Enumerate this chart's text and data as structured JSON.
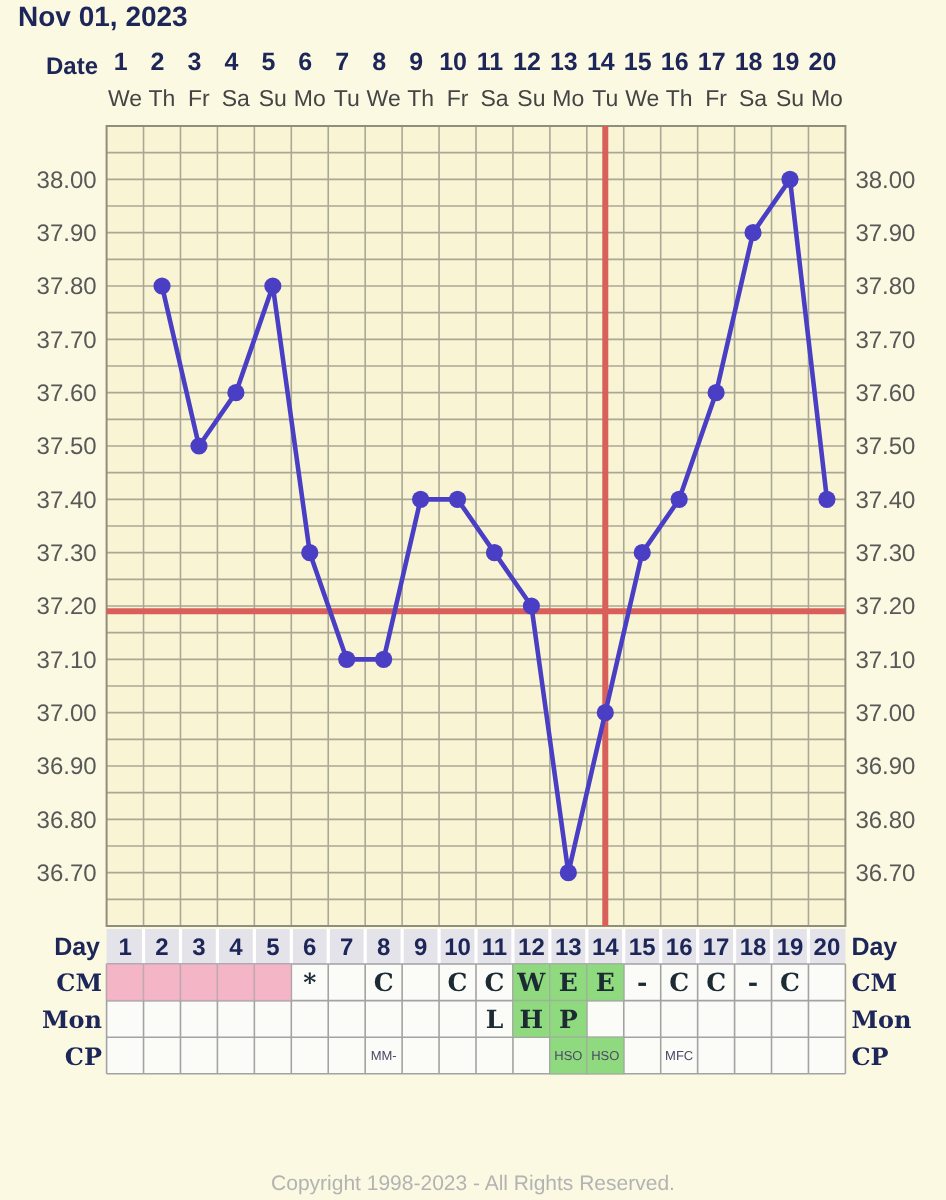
{
  "chart_data": [
    {
      "type": "line",
      "title": "Nov 01, 2023",
      "xlabel": "Date",
      "x2label": "Day",
      "categories": [
        "1\nWe",
        "2\nTh",
        "3\nFr",
        "4\nSa",
        "5\nSu",
        "6\nMo",
        "7\nTu",
        "8\nWe",
        "9\nTh",
        "10\nFr",
        "11\nSa",
        "12\nSu",
        "13\nMo",
        "14\nTu",
        "15\nWe",
        "16\nTh",
        "17\nFr",
        "18\nSa",
        "19\nSu",
        "20\nMo"
      ],
      "values": [
        null,
        37.8,
        37.5,
        37.6,
        37.8,
        37.3,
        37.1,
        37.1,
        37.4,
        37.4,
        37.3,
        37.2,
        36.7,
        37.0,
        37.3,
        37.4,
        37.6,
        37.9,
        38.0,
        37.4
      ],
      "color": "#4a3fc4",
      "marker": "circle",
      "line_style": "solid",
      "grid": true,
      "x2lim": [
        0.5,
        20.5
      ],
      "x2ticks": [
        1,
        2,
        3,
        4,
        5,
        6,
        7,
        8,
        9,
        10,
        11,
        12,
        13,
        14,
        15,
        16,
        17,
        18,
        19,
        20
      ],
      "ylim": [
        36.6,
        38.1
      ],
      "yticks": [
        {
          "value": 36.65,
          "label": null
        },
        {
          "value": 36.7,
          "label": "36.70"
        },
        {
          "value": 36.75,
          "label": null
        },
        {
          "value": 36.8,
          "label": "36.80"
        },
        {
          "value": 36.85,
          "label": null
        },
        {
          "value": 36.9,
          "label": "36.90"
        },
        {
          "value": 36.95,
          "label": null
        },
        {
          "value": 37.0,
          "label": "37.00"
        },
        {
          "value": 37.05,
          "label": null
        },
        {
          "value": 37.1,
          "label": "37.10"
        },
        {
          "value": 37.15,
          "label": null
        },
        {
          "value": 37.2,
          "label": "37.20"
        },
        {
          "value": 37.25,
          "label": null
        },
        {
          "value": 37.3,
          "label": "37.30"
        },
        {
          "value": 37.35,
          "label": null
        },
        {
          "value": 37.4,
          "label": "37.40"
        },
        {
          "value": 37.45,
          "label": null
        },
        {
          "value": 37.5,
          "label": "37.50"
        },
        {
          "value": 37.55,
          "label": null
        },
        {
          "value": 37.6,
          "label": "37.60"
        },
        {
          "value": 37.65,
          "label": null
        },
        {
          "value": 37.7,
          "label": "37.70"
        },
        {
          "value": 37.75,
          "label": null
        },
        {
          "value": 37.8,
          "label": "37.80"
        },
        {
          "value": 37.85,
          "label": null
        },
        {
          "value": 37.9,
          "label": "37.90"
        },
        {
          "value": 37.95,
          "label": null
        },
        {
          "value": 38.0,
          "label": "38.00"
        },
        {
          "value": 38.05,
          "label": null
        }
      ],
      "y2lim": [
        36.6,
        38.1
      ],
      "y2ticks": [
        {
          "value": 36.7,
          "label": "36.70"
        },
        {
          "value": 36.8,
          "label": "36.80"
        },
        {
          "value": 36.9,
          "label": "36.90"
        },
        {
          "value": 37.0,
          "label": "37.00"
        },
        {
          "value": 37.1,
          "label": "37.10"
        },
        {
          "value": 37.2,
          "label": "37.20"
        },
        {
          "value": 37.3,
          "label": "37.30"
        },
        {
          "value": 37.4,
          "label": "37.40"
        },
        {
          "value": 37.5,
          "label": "37.50"
        },
        {
          "value": 37.6,
          "label": "37.60"
        },
        {
          "value": 37.7,
          "label": "37.70"
        },
        {
          "value": 37.8,
          "label": "37.80"
        },
        {
          "value": 37.9,
          "label": "37.90"
        },
        {
          "value": 38.0,
          "label": "38.00"
        }
      ],
      "ref_lines": [
        {
          "axis": "y",
          "value": 37.19,
          "color": "#d9605a"
        },
        {
          "axis": "x",
          "value": "14\nTu",
          "color": "#d9605a"
        }
      ]
    },
    {
      "type": "other",
      "y_categories": [
        "CM",
        "Mon",
        "CP"
      ],
      "y2_categories": [
        "CM",
        "Mon",
        "CP"
      ],
      "cell_labels": [
        [
          null,
          null,
          null,
          null,
          null,
          "*",
          null,
          "C",
          null,
          "C",
          "C",
          "W",
          "E",
          "E",
          "-",
          "C",
          "C",
          "-",
          "C",
          null
        ],
        [
          null,
          null,
          null,
          null,
          null,
          null,
          null,
          null,
          null,
          null,
          "L",
          "H",
          "P",
          null,
          null,
          null,
          null,
          null,
          null,
          null
        ],
        [
          null,
          null,
          null,
          null,
          null,
          null,
          null,
          "MM-",
          null,
          null,
          null,
          null,
          "HSO",
          "HSO",
          null,
          "MFC",
          null,
          null,
          null,
          null
        ]
      ],
      "colors": [
        [
          "#f4b5c7",
          "#f4b5c7",
          "#f4b5c7",
          "#f4b5c7",
          "#f4b5c7",
          null,
          null,
          null,
          null,
          null,
          null,
          "#8fd97f",
          "#8fd97f",
          "#8fd97f",
          null,
          null,
          null,
          null,
          null,
          null
        ],
        [
          null,
          null,
          null,
          null,
          null,
          null,
          null,
          null,
          null,
          null,
          null,
          "#8fd97f",
          "#8fd97f",
          null,
          null,
          null,
          null,
          null,
          null,
          null
        ],
        [
          null,
          null,
          null,
          null,
          null,
          null,
          null,
          null,
          null,
          null,
          null,
          null,
          "#8fd97f",
          "#8fd97f",
          null,
          null,
          null,
          null,
          null,
          null
        ]
      ],
      "annotations": [
        "Copyright 1998-2023 - All Rights Reserved."
      ]
    }
  ]
}
